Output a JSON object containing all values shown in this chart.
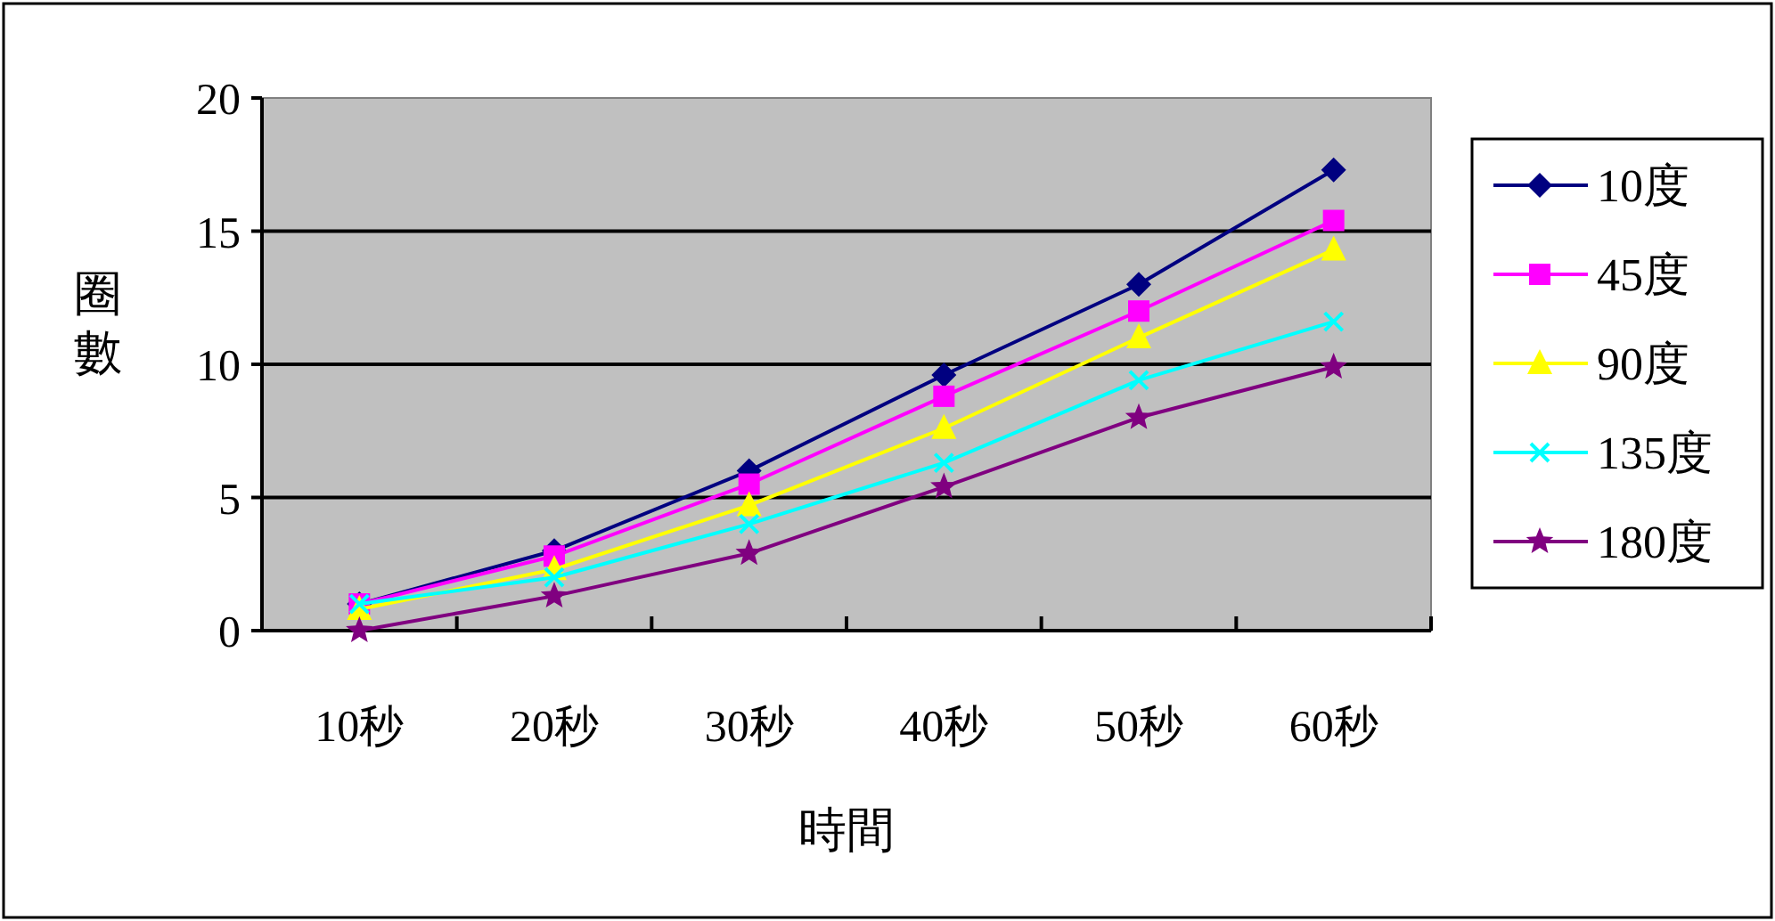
{
  "chart_data": {
    "type": "line",
    "xlabel": "時間",
    "ylabel": "圈數",
    "categories": [
      "10秒",
      "20秒",
      "30秒",
      "40秒",
      "50秒",
      "60秒"
    ],
    "series": [
      {
        "name": "10度",
        "color": "#000080",
        "marker": "diamond",
        "values": [
          1.0,
          3.0,
          6.0,
          9.6,
          13.0,
          17.3
        ]
      },
      {
        "name": "45度",
        "color": "#ff00ff",
        "marker": "square",
        "values": [
          1.0,
          2.8,
          5.5,
          8.8,
          12.0,
          15.4
        ]
      },
      {
        "name": "90度",
        "color": "#ffff00",
        "marker": "triangle",
        "values": [
          0.8,
          2.3,
          4.7,
          7.6,
          11.0,
          14.3
        ]
      },
      {
        "name": "135度",
        "color": "#00ffff",
        "marker": "cross",
        "values": [
          1.0,
          2.0,
          4.0,
          6.3,
          9.4,
          11.6
        ]
      },
      {
        "name": "180度",
        "color": "#800080",
        "marker": "star",
        "values": [
          0.0,
          1.3,
          2.9,
          5.4,
          8.0,
          9.9
        ]
      }
    ],
    "ylim": [
      0,
      20
    ],
    "yticks": [
      0,
      5,
      10,
      15,
      20
    ],
    "grid": "y",
    "legend": "right"
  }
}
